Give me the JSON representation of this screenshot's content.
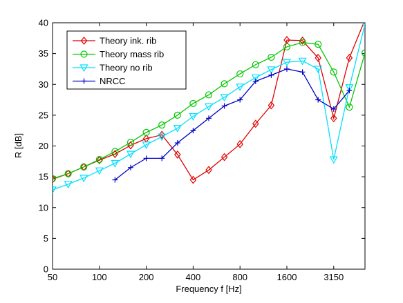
{
  "chart_data": {
    "type": "line",
    "xlabel": "Frequency f [Hz]",
    "ylabel": "R [dB]",
    "ylim": [
      0,
      40
    ],
    "x_tick_labels": [
      "50",
      "100",
      "200",
      "400",
      "800",
      "1600",
      "3150"
    ],
    "y_ticks": [
      0,
      5,
      10,
      15,
      20,
      25,
      30,
      35,
      40
    ],
    "y_tick_labels": [
      "0",
      "5",
      "10",
      "15",
      "20",
      "25",
      "30",
      "35",
      "40"
    ],
    "grid": false,
    "legend_position": "top-left",
    "categories": [
      "50",
      "63",
      "80",
      "100",
      "125",
      "160",
      "200",
      "250",
      "315",
      "400",
      "500",
      "630",
      "800",
      "1000",
      "1250",
      "1600",
      "2000",
      "2500",
      "3150",
      "4000",
      "5000"
    ],
    "series": [
      {
        "name": "Theory ink. rib",
        "color": "#e00000",
        "marker": "diamond",
        "values": [
          14.6,
          15.5,
          16.6,
          17.7,
          18.7,
          20.1,
          21.2,
          21.8,
          18.6,
          14.5,
          16.1,
          18.2,
          20.3,
          23.6,
          26.6,
          37.2,
          37.1,
          34.3,
          24.5,
          34.3,
          40.5
        ]
      },
      {
        "name": "Theory mass rib",
        "color": "#00c800",
        "marker": "circle",
        "values": [
          14.7,
          15.5,
          16.6,
          17.8,
          19.1,
          20.6,
          22.2,
          23.4,
          25.0,
          26.9,
          28.3,
          30.1,
          31.7,
          33.2,
          34.4,
          36.1,
          36.8,
          36.5,
          32.0,
          26.3,
          35.1
        ]
      },
      {
        "name": "Theory no rib",
        "color": "#00e0ff",
        "marker": "triangle-down",
        "values": [
          12.9,
          13.8,
          14.8,
          16.0,
          17.2,
          18.7,
          20.2,
          21.5,
          22.9,
          24.8,
          26.4,
          27.9,
          29.6,
          31.1,
          32.4,
          33.6,
          33.8,
          32.5,
          17.8,
          29.5,
          39.8
        ]
      },
      {
        "name": "NRCC",
        "color": "#0000c8",
        "marker": "plus",
        "values": [
          null,
          null,
          null,
          null,
          14.5,
          16.5,
          18.0,
          18.0,
          20.5,
          22.5,
          24.5,
          26.5,
          27.5,
          30.5,
          31.5,
          32.5,
          32.0,
          27.5,
          26.0,
          29.0,
          null
        ]
      }
    ]
  }
}
